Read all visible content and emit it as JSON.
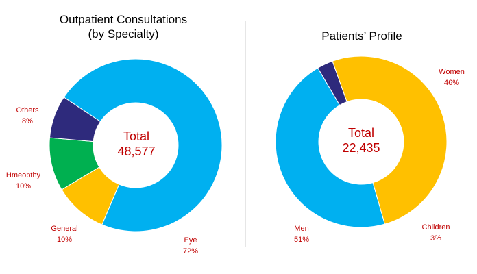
{
  "chart_data": [
    {
      "type": "pie",
      "title_lines": [
        "Outpatient Consultations",
        "(by Specialty)"
      ],
      "center_label": "Total",
      "center_value": "48,577",
      "slices": [
        {
          "name": "Eye",
          "value": 72,
          "value_label": "72%",
          "color": "#00b0f0"
        },
        {
          "name": "General",
          "value": 10,
          "value_label": "10%",
          "color": "#ffc000"
        },
        {
          "name": "Hmeopthy",
          "value": 10,
          "value_label": "10%",
          "color": "#00b050"
        },
        {
          "name": "Others",
          "value": 8,
          "value_label": "8%",
          "color": "#2e2a7c"
        }
      ]
    },
    {
      "type": "pie",
      "title_lines": [
        "Patients’ Profile"
      ],
      "center_label": "Total",
      "center_value": "22,435",
      "slices": [
        {
          "name": "Women",
          "value": 46,
          "value_label": "46%",
          "color": "#00b0f0"
        },
        {
          "name": "Children",
          "value": 3,
          "value_label": "3%",
          "color": "#2e2a7c"
        },
        {
          "name": "Men",
          "value": 51,
          "value_label": "51%",
          "color": "#ffc000"
        }
      ]
    }
  ]
}
